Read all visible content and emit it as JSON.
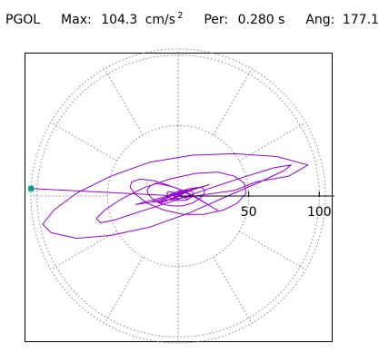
{
  "header": {
    "station": "PGOL",
    "max_label": "Max:",
    "max_value": "104.3",
    "max_unit": "cm/s",
    "max_unit_exp": "2",
    "period_label": "Per:",
    "period_value": "0.280 s",
    "angle_label": "Ang:",
    "angle_value": "177.1"
  },
  "chart_data": {
    "type": "line",
    "coordinate_system": "polar",
    "rmax": 104.3,
    "rings": [
      50,
      100
    ],
    "ring_tick_labels": [
      "50",
      "100"
    ],
    "spoke_angles_deg": [
      0,
      30,
      60,
      90,
      120,
      150,
      180,
      210,
      240,
      270,
      300,
      330
    ],
    "grid": true,
    "peak_marker": {
      "amplitude": 104.3,
      "angle_deg": 177.1
    },
    "series": [
      {
        "x": [
          0,
          3,
          -5,
          8,
          -12,
          14,
          -18,
          22,
          -30,
          40,
          55,
          78,
          92,
          70,
          40,
          10,
          -20,
          -48,
          -72,
          -88,
          -96,
          -90,
          -72,
          -48,
          -20,
          8,
          35,
          58,
          75,
          80,
          68,
          45,
          18,
          -8,
          -30,
          -45,
          -55,
          -58,
          -52,
          -40,
          -24,
          -6,
          12,
          28,
          40,
          47,
          48,
          42,
          32,
          18,
          4,
          -10,
          -22,
          -30,
          -34,
          -33,
          -27,
          -18,
          -8,
          3,
          13,
          21,
          26,
          28,
          26,
          21,
          14,
          6,
          -2,
          -10,
          -16,
          -20,
          -22,
          -21,
          -17,
          -11,
          -4,
          3,
          10,
          15,
          18,
          19,
          17,
          13,
          7,
          1,
          -5,
          -10,
          -13,
          -14,
          -13,
          -10,
          -6,
          -1,
          4,
          8,
          10,
          11,
          9,
          6,
          2,
          -2,
          -5,
          -7,
          -8,
          -7,
          -5,
          -2,
          1,
          4,
          6,
          7,
          6,
          4,
          1,
          -1,
          -3,
          -4,
          -4,
          -3,
          -1,
          0
        ],
        "y": [
          0,
          2,
          -3,
          4,
          -5,
          6,
          -4,
          8,
          -6,
          4,
          10,
          14,
          22,
          28,
          30,
          29,
          24,
          14,
          2,
          -10,
          -20,
          -26,
          -30,
          -28,
          -22,
          -12,
          0,
          10,
          18,
          22,
          20,
          13,
          4,
          -5,
          -12,
          -17,
          -19,
          -16,
          -10,
          -2,
          6,
          12,
          16,
          17,
          14,
          9,
          2,
          -5,
          -10,
          -13,
          -13,
          -10,
          -5,
          1,
          6,
          10,
          12,
          11,
          8,
          4,
          -1,
          -6,
          -9,
          -10,
          -9,
          -6,
          -2,
          2,
          6,
          8,
          9,
          7,
          4,
          1,
          -3,
          -6,
          -7,
          -7,
          -5,
          -2,
          1,
          4,
          6,
          6,
          5,
          3,
          0,
          -3,
          -5,
          -5,
          -4,
          -2,
          1,
          3,
          4,
          4,
          3,
          1,
          -1,
          -3,
          -3,
          -3,
          -2,
          0,
          2,
          3,
          3,
          2,
          1,
          -1,
          -2,
          -2,
          -2,
          -1,
          0,
          1,
          2,
          2,
          1,
          0,
          -1,
          0
        ],
        "color": "#9400d3"
      }
    ]
  },
  "colors": {
    "trace": "#9400d3",
    "grid": "#888888",
    "axis": "#000000",
    "marker": "#00a080"
  }
}
